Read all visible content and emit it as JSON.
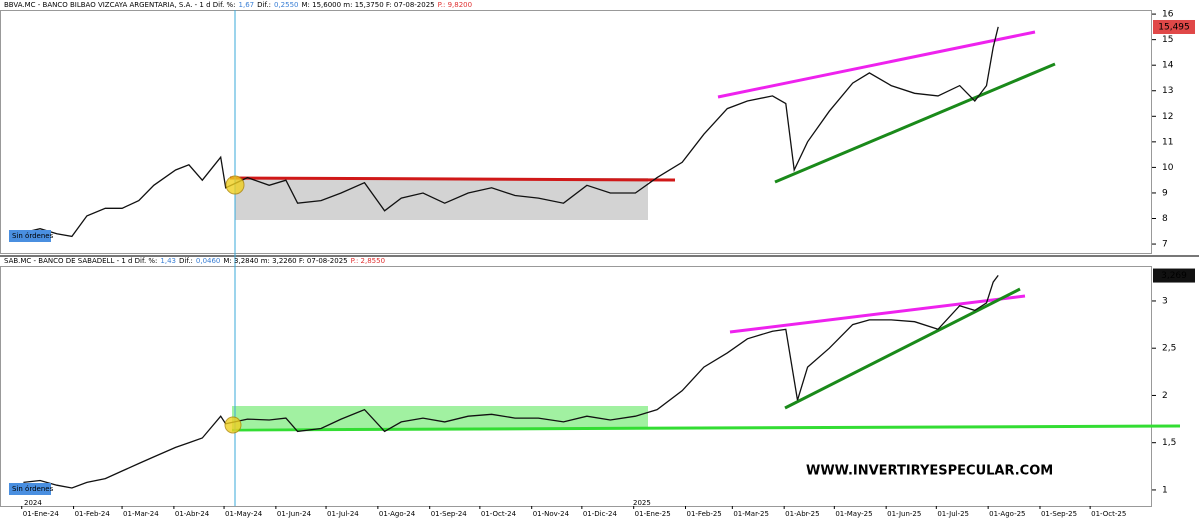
{
  "chart_data": [
    {
      "type": "line",
      "header": [
        {
          "text": "BBVA.MC - BANCO BILBAO VIZCAYA ARGENTARIA, S.A. - 1 d  Dif. %:",
          "color": "#000000"
        },
        {
          "text": "1,67",
          "color": "#3a7fd5"
        },
        {
          "text": "Dif.:",
          "color": "#000000"
        },
        {
          "text": "0,2550",
          "color": "#3a7fd5"
        },
        {
          "text": "M: 15,6000  m: 15,3750  F: 07-08-2025",
          "color": "#000000"
        },
        {
          "text": "P.: 9,8200",
          "color": "#e03030"
        }
      ],
      "last_price": {
        "value": 15.495,
        "label": "15,495",
        "color": "#e04848"
      },
      "status": "Sin órdenes",
      "x": [
        "2024-01-02",
        "2024-01-12",
        "2024-01-22",
        "2024-01-31",
        "2024-02-09",
        "2024-02-20",
        "2024-03-01",
        "2024-03-11",
        "2024-03-20",
        "2024-04-02",
        "2024-04-10",
        "2024-04-18",
        "2024-04-29",
        "2024-05-02",
        "2024-05-15",
        "2024-05-28",
        "2024-06-07",
        "2024-06-14",
        "2024-06-28",
        "2024-07-10",
        "2024-07-24",
        "2024-08-05",
        "2024-08-15",
        "2024-08-28",
        "2024-09-10",
        "2024-09-24",
        "2024-10-08",
        "2024-10-22",
        "2024-11-05",
        "2024-11-20",
        "2024-12-04",
        "2024-12-18",
        "2025-01-02",
        "2025-01-15",
        "2025-01-30",
        "2025-02-12",
        "2025-02-26",
        "2025-03-10",
        "2025-03-25",
        "2025-04-02",
        "2025-04-07",
        "2025-04-15",
        "2025-04-28",
        "2025-05-12",
        "2025-05-22",
        "2025-06-04",
        "2025-06-18",
        "2025-07-02",
        "2025-07-15",
        "2025-07-24",
        "2025-07-31",
        "2025-08-04",
        "2025-08-07"
      ],
      "series": [
        {
          "color": "#111111",
          "values": [
            7.45,
            7.6,
            7.4,
            7.3,
            8.1,
            8.4,
            8.4,
            8.7,
            9.3,
            9.9,
            10.1,
            9.5,
            10.4,
            9.2,
            9.6,
            9.3,
            9.5,
            8.6,
            8.7,
            9.0,
            9.4,
            8.3,
            8.8,
            9.0,
            8.6,
            9.0,
            9.2,
            8.9,
            8.8,
            8.6,
            9.3,
            9.0,
            9.0,
            9.6,
            10.2,
            11.3,
            12.3,
            12.6,
            12.8,
            12.5,
            9.9,
            11.0,
            12.2,
            13.3,
            13.7,
            13.2,
            12.9,
            12.8,
            13.2,
            12.6,
            13.2,
            14.7,
            15.5
          ]
        }
      ],
      "ylim": [
        6.65,
        16.16
      ],
      "yticks": [
        7,
        8,
        9,
        10,
        11,
        12,
        13,
        14,
        15,
        16
      ],
      "xlim": [
        "2023-12-19",
        "2025-11-07"
      ]
    },
    {
      "type": "line",
      "header": [
        {
          "text": "SAB.MC - BANCO DE SABADELL - 1 d  Dif. %:",
          "color": "#000000"
        },
        {
          "text": "1,43",
          "color": "#3a7fd5"
        },
        {
          "text": "Dif.:",
          "color": "#000000"
        },
        {
          "text": "0,0460",
          "color": "#3a7fd5"
        },
        {
          "text": "M: 3,2840  m: 3,2260  F: 07-08-2025",
          "color": "#000000"
        },
        {
          "text": "P.: 2,8550",
          "color": "#e03030"
        }
      ],
      "last_price": {
        "value": 3.269,
        "label": "3,269",
        "color": "#111111"
      },
      "status": "Sin órdenes",
      "annotation": "WWW.INVERTIRYESPECULAR.COM",
      "year_labels": [
        "2024",
        "2025"
      ],
      "x": [
        "2024-01-02",
        "2024-01-12",
        "2024-01-22",
        "2024-01-31",
        "2024-02-09",
        "2024-02-20",
        "2024-03-01",
        "2024-03-11",
        "2024-03-20",
        "2024-04-02",
        "2024-04-10",
        "2024-04-18",
        "2024-04-29",
        "2024-05-02",
        "2024-05-15",
        "2024-05-28",
        "2024-06-07",
        "2024-06-14",
        "2024-06-28",
        "2024-07-10",
        "2024-07-24",
        "2024-08-05",
        "2024-08-15",
        "2024-08-28",
        "2024-09-10",
        "2024-09-24",
        "2024-10-08",
        "2024-10-22",
        "2024-11-05",
        "2024-11-20",
        "2024-12-04",
        "2024-12-18",
        "2025-01-02",
        "2025-01-15",
        "2025-01-30",
        "2025-02-12",
        "2025-02-26",
        "2025-03-10",
        "2025-03-25",
        "2025-04-02",
        "2025-04-09",
        "2025-04-15",
        "2025-04-28",
        "2025-05-12",
        "2025-05-22",
        "2025-06-04",
        "2025-06-18",
        "2025-07-02",
        "2025-07-15",
        "2025-07-24",
        "2025-07-31",
        "2025-08-04",
        "2025-08-07"
      ],
      "series": [
        {
          "color": "#111111",
          "values": [
            1.08,
            1.1,
            1.05,
            1.02,
            1.08,
            1.12,
            1.2,
            1.28,
            1.35,
            1.45,
            1.5,
            1.55,
            1.78,
            1.7,
            1.75,
            1.74,
            1.76,
            1.62,
            1.65,
            1.75,
            1.85,
            1.62,
            1.72,
            1.76,
            1.72,
            1.78,
            1.8,
            1.76,
            1.76,
            1.72,
            1.78,
            1.74,
            1.78,
            1.85,
            2.05,
            2.3,
            2.45,
            2.6,
            2.68,
            2.7,
            1.95,
            2.3,
            2.5,
            2.75,
            2.8,
            2.8,
            2.78,
            2.7,
            2.95,
            2.9,
            2.98,
            3.2,
            3.27
          ]
        }
      ],
      "ylim": [
        0.83,
        3.37
      ],
      "yticks": [
        1,
        {
          "value": 1.5,
          "label": "1,5"
        },
        2,
        {
          "value": 2.5,
          "label": "2,5"
        },
        3
      ],
      "xlim": [
        "2023-12-19",
        "2025-11-07"
      ],
      "xticks": [
        {
          "value": "2024-01-01",
          "label": "01-Ene-24"
        },
        {
          "value": "2024-02-01",
          "label": "01-Feb-24"
        },
        {
          "value": "2024-03-01",
          "label": "01-Mar-24"
        },
        {
          "value": "2024-04-01",
          "label": "01-Abr-24"
        },
        {
          "value": "2024-05-01",
          "label": "01-May-24"
        },
        {
          "value": "2024-06-01",
          "label": "01-Jun-24"
        },
        {
          "value": "2024-07-01",
          "label": "01-Jul-24"
        },
        {
          "value": "2024-08-01",
          "label": "01-Ago-24"
        },
        {
          "value": "2024-09-01",
          "label": "01-Sep-24"
        },
        {
          "value": "2024-10-01",
          "label": "01-Oct-24"
        },
        {
          "value": "2024-11-01",
          "label": "01-Nov-24"
        },
        {
          "value": "2024-12-01",
          "label": "01-Dic-24"
        },
        {
          "value": "2025-01-01",
          "label": "01-Ene-25"
        },
        {
          "value": "2025-02-01",
          "label": "01-Feb-25"
        },
        {
          "value": "2025-03-01",
          "label": "01-Mar-25"
        },
        {
          "value": "2025-04-01",
          "label": "01-Abr-25"
        },
        {
          "value": "2025-05-01",
          "label": "01-May-25"
        },
        {
          "value": "2025-06-01",
          "label": "01-Jun-25"
        },
        {
          "value": "2025-07-01",
          "label": "01-Jul-25"
        },
        {
          "value": "2025-08-01",
          "label": "01-Ago-25"
        },
        {
          "value": "2025-09-01",
          "label": "01-Sep-25"
        },
        {
          "value": "2025-10-01",
          "label": "01-Oct-25"
        }
      ]
    }
  ]
}
